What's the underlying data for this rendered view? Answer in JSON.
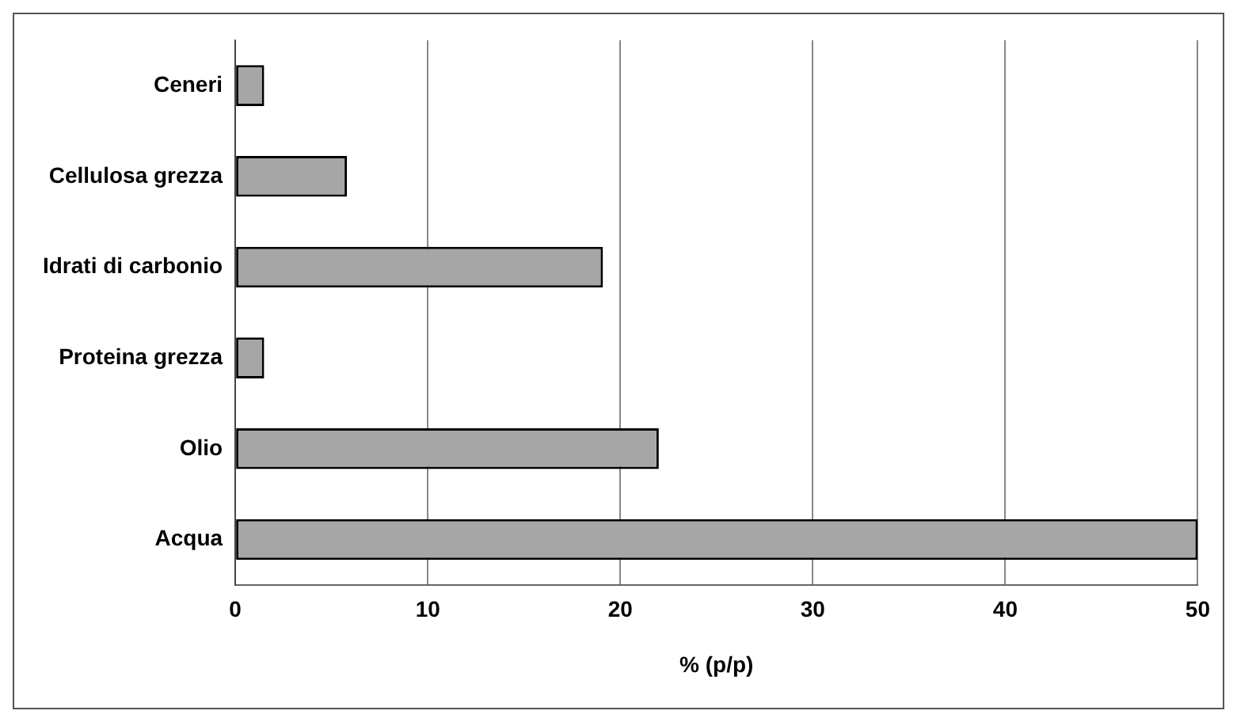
{
  "chart_data": {
    "type": "bar",
    "orientation": "horizontal",
    "xlabel": "% (p/p)",
    "categories": [
      "Ceneri",
      "Cellulosa grezza",
      "Idrati di carbonio",
      "Proteina grezza",
      "Olio",
      "Acqua"
    ],
    "values": [
      1.5,
      5.8,
      19.1,
      1.5,
      22.0,
      50
    ],
    "color": "#a6a6a6",
    "xlim": [
      0,
      50
    ],
    "xticks": [
      0,
      10,
      20,
      30,
      40,
      50
    ],
    "grid": "x",
    "legend": false
  }
}
